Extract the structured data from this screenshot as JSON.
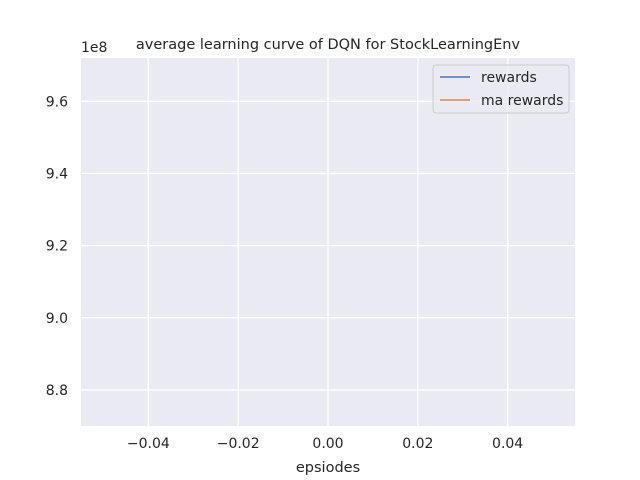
{
  "chart_data": {
    "type": "line",
    "title": "average learning curve of DQN for StockLearningEnv",
    "xlabel": "epsiodes",
    "ylabel": "",
    "y_offset_label": "1e8",
    "xlim": [
      -0.055,
      0.055
    ],
    "ylim": [
      8.7,
      9.72
    ],
    "x_ticks": [
      -0.04,
      -0.02,
      0.0,
      0.02,
      0.04
    ],
    "x_tick_labels": [
      "−0.04",
      "−0.02",
      "0.00",
      "0.02",
      "0.04"
    ],
    "y_ticks": [
      8.8,
      9.0,
      9.2,
      9.4,
      9.6
    ],
    "y_tick_labels": [
      "8.8",
      "9.0",
      "9.2",
      "9.4",
      "9.6"
    ],
    "grid": true,
    "legend_placement": "top-right",
    "series": [
      {
        "name": "rewards",
        "color": "#4c72b0",
        "x": [],
        "y": []
      },
      {
        "name": "ma rewards",
        "color": "#dd8452",
        "x": [],
        "y": []
      }
    ],
    "colors": {
      "plot_background": "#eaeaf2",
      "grid": "#ffffff"
    }
  }
}
